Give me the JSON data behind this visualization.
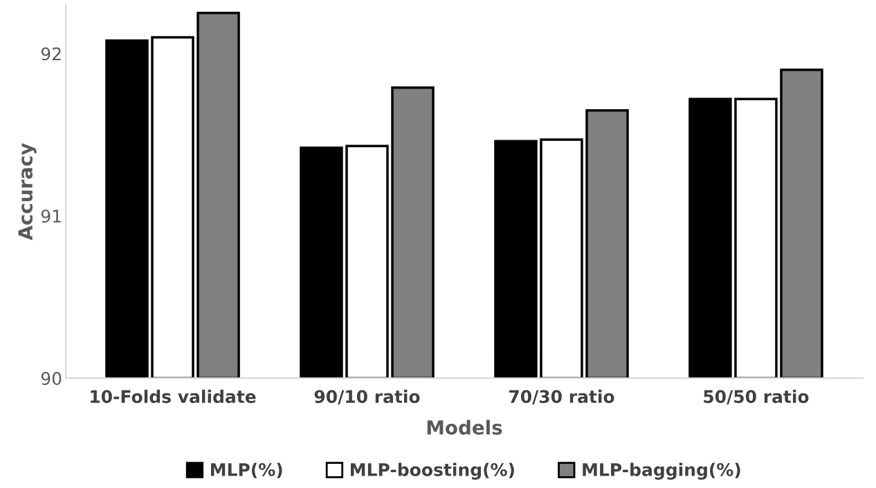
{
  "chart_data": {
    "type": "bar",
    "xlabel": "Models",
    "ylabel": "Accuracy",
    "categories": [
      "10-Folds validate",
      "90/10 ratio",
      "70/30 ratio",
      "50/50 ratio"
    ],
    "series": [
      {
        "name": "MLP(%)",
        "color": "#000000",
        "values": [
          92.08,
          91.42,
          91.46,
          91.72
        ]
      },
      {
        "name": "MLP-boosting(%)",
        "color": "#ffffff",
        "values": [
          92.1,
          91.43,
          91.47,
          91.72
        ]
      },
      {
        "name": "MLP-bagging(%)",
        "color": "#808080",
        "values": [
          92.25,
          91.79,
          91.65,
          91.9
        ]
      }
    ],
    "ylim": [
      90,
      92.3
    ],
    "yticks": [
      90,
      91,
      92
    ],
    "grid": false,
    "legend": "bottom"
  }
}
